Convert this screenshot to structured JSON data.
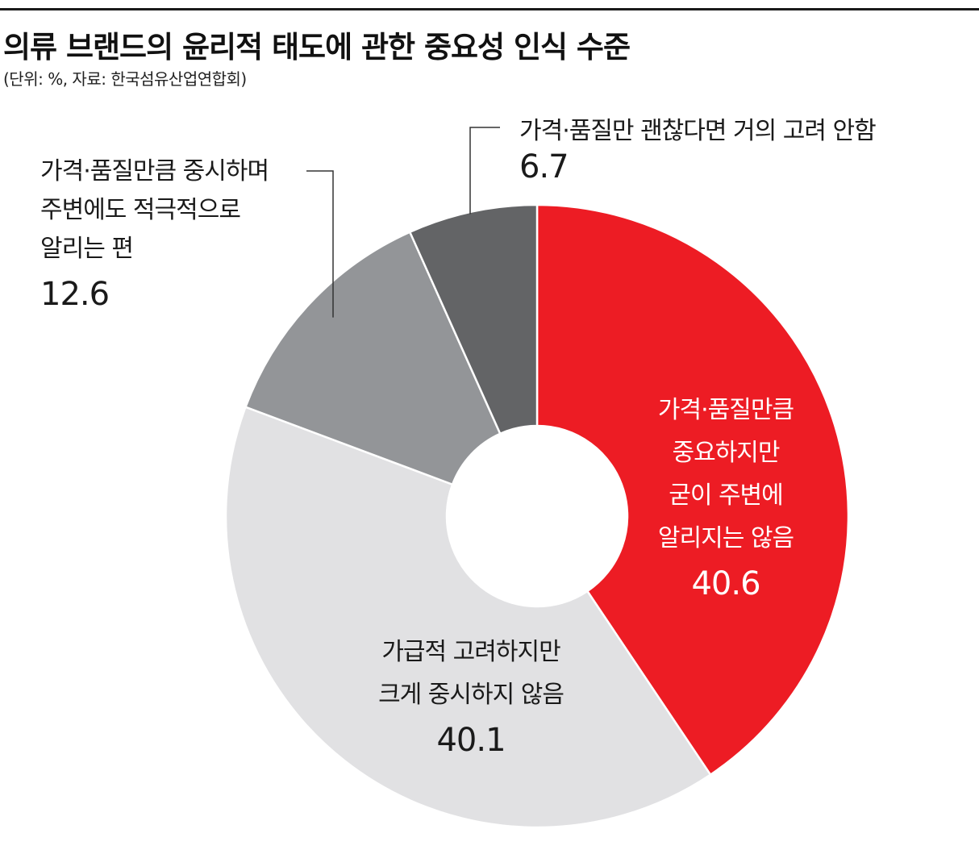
{
  "chart_data": {
    "type": "pie",
    "title": "의류 브랜드의 윤리적 태도에 관한 중요성 인식 수준",
    "subtitle": "(단위: %, 자료:  한국섬유산업연합회)",
    "start_angle_deg": 0,
    "direction": "clockwise",
    "donut": true,
    "slices": [
      {
        "label": "가격·품질만큼 중요하지만 굳이 주변에 알리지는 않음",
        "label_lines": [
          "가격·품질만큼",
          "중요하지만",
          "굳이 주변에",
          "알리지는 않음"
        ],
        "value": 40.6,
        "value_label": "40.6",
        "color": "#ed1c24",
        "text_color": "#ffffff"
      },
      {
        "label": "가급적 고려하지만 크게 중시하지 않음",
        "label_lines": [
          "가급적 고려하지만",
          "크게 중시하지 않음"
        ],
        "value": 40.1,
        "value_label": "40.1",
        "color": "#e1e1e3",
        "text_color": "#1a1a1a"
      },
      {
        "label": "가격·품질만큼 중시하며 주변에도 적극적으로 알리는 편",
        "label_lines": [
          "가격·품질만큼 중시하며",
          "주변에도 적극적으로",
          "알리는 편"
        ],
        "value": 12.6,
        "value_label": "12.6",
        "color": "#939598",
        "text_color": "#1a1a1a"
      },
      {
        "label": "가격·품질만 괜찮다면 거의 고려 안함",
        "label_lines": [
          "가격·품질만 괜찮다면 거의 고려 안함"
        ],
        "value": 6.7,
        "value_label": "6.7",
        "color": "#636466",
        "text_color": "#1a1a1a"
      }
    ]
  }
}
